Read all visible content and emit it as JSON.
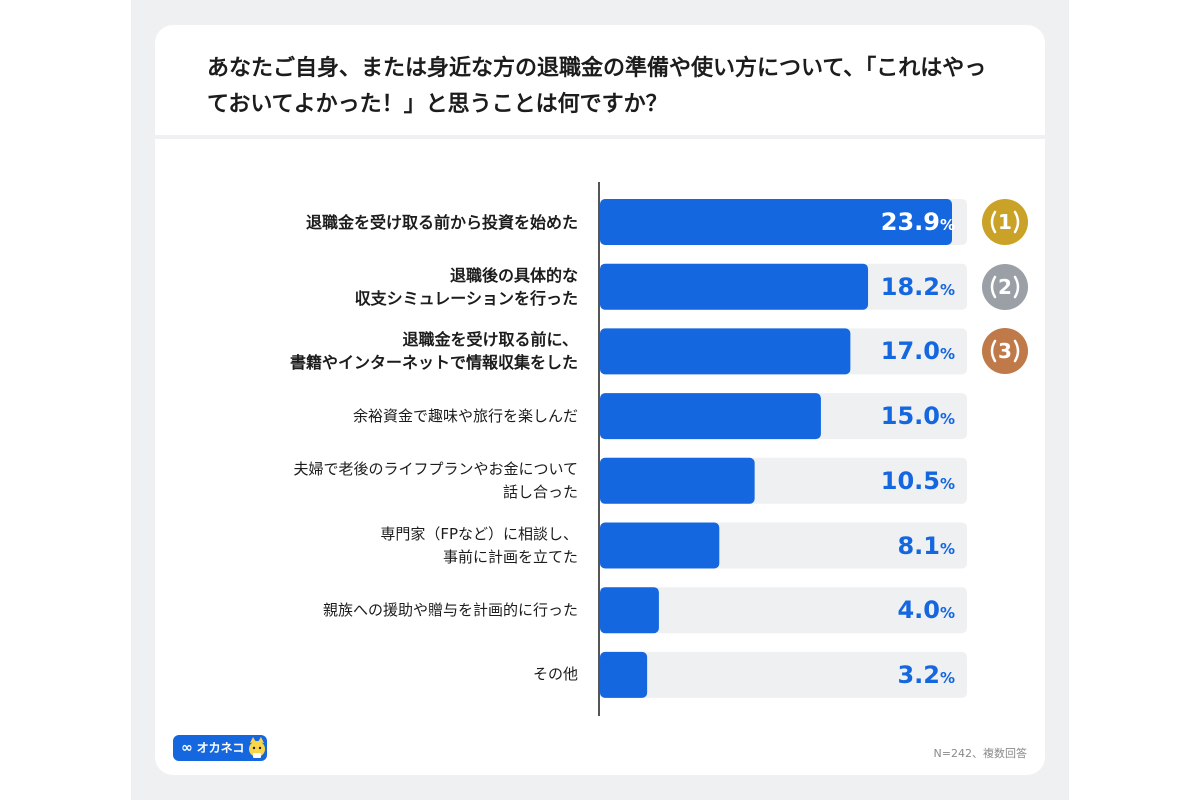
{
  "title": "あなたご自身、または身近な方の退職金の準備や使い方について、「これはやっておいてよかった！」と思うことは何ですか？",
  "footnote": "N=242、複数回答",
  "logo": {
    "text": "オカネコ",
    "symbol": "∞"
  },
  "colors": {
    "bar": "#1567e0",
    "track": "#eef0f2",
    "gold": "#c9a227",
    "silver": "#9aa0a6",
    "bronze": "#c07a4a"
  },
  "chart_data": {
    "type": "bar",
    "orientation": "horizontal",
    "categories": [
      "退職金を受け取る前から投資を始めた",
      "退職後の具体的な\n収支シミュレーションを行った",
      "退職金を受け取る前に、\n書籍やインターネットで情報収集をした",
      "余裕資金で趣味や旅行を楽しんだ",
      "夫婦で老後のライフプランやお金について\n話し合った",
      "専門家（FPなど）に相談し、\n事前に計画を立てた",
      "親族への援助や贈与を計画的に行った",
      "その他"
    ],
    "values": [
      23.9,
      18.2,
      17.0,
      15.0,
      10.5,
      8.1,
      4.0,
      3.2
    ],
    "value_labels": [
      "23.9",
      "18.2",
      "17.0",
      "15.0",
      "10.5",
      "8.1",
      "4.0",
      "3.2"
    ],
    "unit": "%",
    "xlim": [
      0,
      25
    ],
    "ranks": [
      "1",
      "2",
      "3"
    ]
  }
}
